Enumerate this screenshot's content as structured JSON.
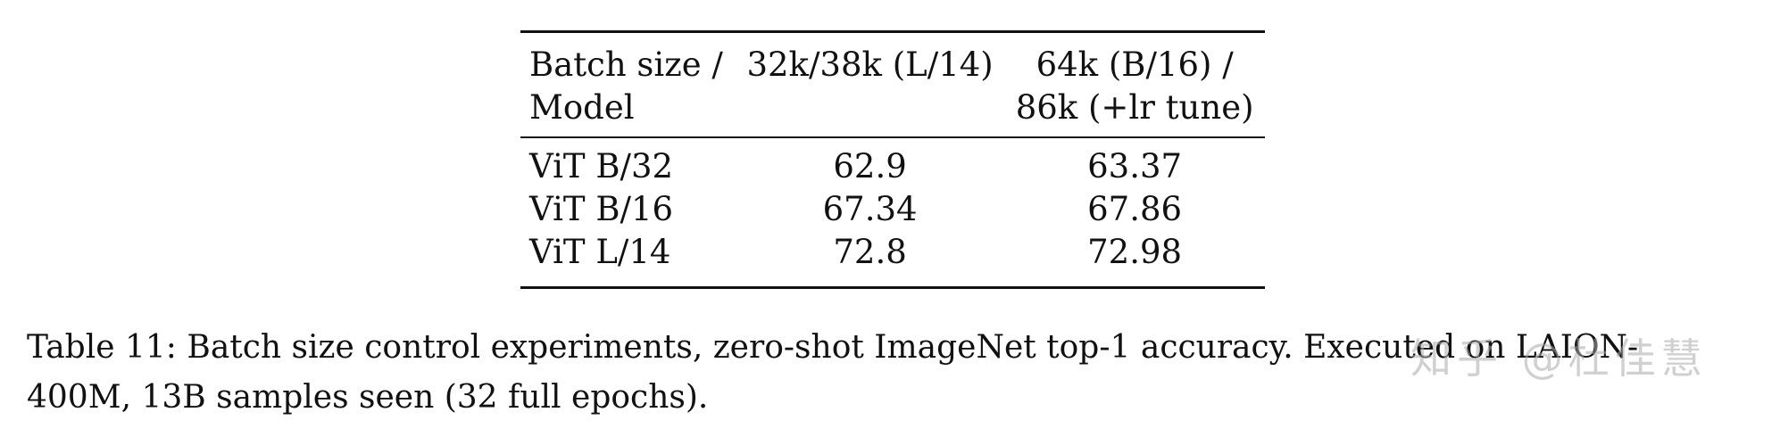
{
  "table": {
    "header": {
      "col1": [
        "Batch size /",
        "Model"
      ],
      "col2": [
        "32k/38k (L/14)"
      ],
      "col3": [
        "64k (B/16) /",
        "86k (+lr tune)"
      ]
    },
    "rows": [
      {
        "model": "ViT B/32",
        "v1": "62.9",
        "v2": "63.37"
      },
      {
        "model": "ViT B/16",
        "v1": "67.34",
        "v2": "67.86"
      },
      {
        "model": "ViT L/14",
        "v1": "72.8",
        "v2": "72.98"
      }
    ]
  },
  "caption": {
    "line1": "Table 11: Batch size control experiments, zero-shot ImageNet top-1 accuracy. Executed on LAION-",
    "line2": "400M, 13B samples seen (32 full epochs)."
  },
  "watermark": "知乎 @杜佳慧"
}
